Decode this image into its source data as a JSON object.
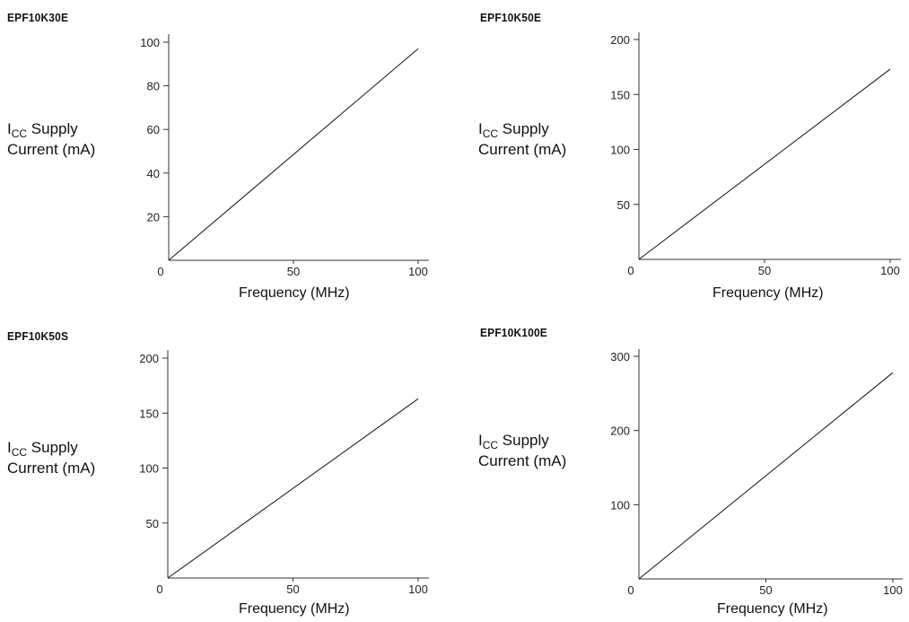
{
  "chart_data": [
    {
      "type": "line",
      "title": "EPF10K30E",
      "ylabel_main": "I",
      "ylabel_sub": "CC",
      "ylabel_rest": " Supply",
      "ylabel_line2": "Current (mA)",
      "xlabel": "Frequency (MHz)",
      "xlim": [
        0,
        100
      ],
      "ylim": [
        0,
        100
      ],
      "x_ticks": [
        0,
        50,
        100
      ],
      "y_ticks": [
        20,
        40,
        60,
        80,
        100
      ],
      "series": [
        {
          "x": [
            0,
            100
          ],
          "y": [
            0,
            97
          ]
        }
      ]
    },
    {
      "type": "line",
      "title": "EPF10K50E",
      "ylabel_main": "I",
      "ylabel_sub": "CC",
      "ylabel_rest": " Supply",
      "ylabel_line2": "Current (mA)",
      "xlabel": "Frequency (MHz)",
      "xlim": [
        0,
        100
      ],
      "ylim": [
        0,
        200
      ],
      "x_ticks": [
        0,
        50,
        100
      ],
      "y_ticks": [
        50,
        100,
        150,
        200
      ],
      "series": [
        {
          "x": [
            0,
            100
          ],
          "y": [
            0,
            173
          ]
        }
      ]
    },
    {
      "type": "line",
      "title": "EPF10K50S",
      "ylabel_main": "I",
      "ylabel_sub": "CC",
      "ylabel_rest": " Supply",
      "ylabel_line2": "Current (mA)",
      "xlabel": "Frequency (MHz)",
      "xlim": [
        0,
        100
      ],
      "ylim": [
        0,
        200
      ],
      "x_ticks": [
        0,
        50,
        100
      ],
      "y_ticks": [
        50,
        100,
        150,
        200
      ],
      "series": [
        {
          "x": [
            0,
            100
          ],
          "y": [
            0,
            163
          ]
        }
      ]
    },
    {
      "type": "line",
      "title": "EPF10K100E",
      "ylabel_main": "I",
      "ylabel_sub": "CC",
      "ylabel_rest": " Supply",
      "ylabel_line2": "Current (mA)",
      "xlabel": "Frequency (MHz)",
      "xlim": [
        0,
        100
      ],
      "ylim": [
        0,
        300
      ],
      "x_ticks": [
        0,
        50,
        100
      ],
      "y_ticks": [
        100,
        200,
        300
      ],
      "series": [
        {
          "x": [
            0,
            100
          ],
          "y": [
            0,
            278
          ]
        }
      ]
    }
  ]
}
